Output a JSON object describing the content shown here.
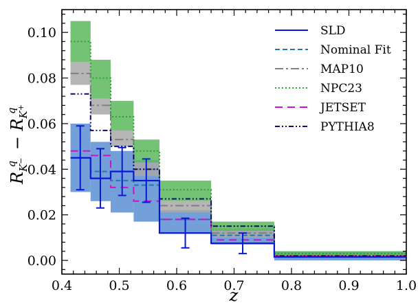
{
  "chart_data": {
    "type": "line",
    "xlabel": "z",
    "ylabel_parts": {
      "main": "R",
      "sub1": "K",
      "sub1_sup": "−",
      "sup": "q",
      "minus": " − ",
      "main2": "R",
      "sub2": "K",
      "sub2_sup": "+",
      "sup2": "q"
    },
    "xlim": [
      0.4,
      1.0
    ],
    "ylim": [
      -0.006,
      0.11
    ],
    "x_ticks": [
      0.4,
      0.5,
      0.6,
      0.7,
      0.8,
      0.9,
      1.0
    ],
    "x_tick_labels": [
      "0.4",
      "0.5",
      "0.6",
      "0.7",
      "0.8",
      "0.9",
      "1.0"
    ],
    "y_ticks": [
      0.0,
      0.02,
      0.04,
      0.06,
      0.08,
      0.1
    ],
    "y_tick_labels": [
      "0.00",
      "0.02",
      "0.04",
      "0.06",
      "0.08",
      "0.10"
    ],
    "bin_edges": [
      0.415,
      0.45,
      0.485,
      0.525,
      0.57,
      0.66,
      0.77,
      1.0
    ],
    "bin_centers": [
      0.432,
      0.467,
      0.505,
      0.547,
      0.615,
      0.715,
      0.885
    ],
    "series": [
      {
        "name": "SLD",
        "style": "solid",
        "color": "#0a18d6",
        "values": [
          0.045,
          0.036,
          0.039,
          0.035,
          0.012,
          0.0075,
          0.0015
        ],
        "errors": [
          0.014,
          0.013,
          0.0105,
          0.0095,
          0.0065,
          0.0045,
          null
        ]
      },
      {
        "name": "Nominal Fit",
        "style": "dashed",
        "color": "#1f77b4",
        "values": [
          0.045,
          0.039,
          0.035,
          0.033,
          0.018,
          0.011,
          0.002
        ],
        "band": [
          [
            0.03,
            0.06
          ],
          [
            0.026,
            0.052
          ],
          [
            0.021,
            0.048
          ],
          [
            0.017,
            0.044
          ],
          [
            0.012,
            0.022
          ],
          [
            0.007,
            0.014
          ],
          [
            0.0,
            0.004
          ]
        ],
        "band_color": "#5b8fd1"
      },
      {
        "name": "MAP10",
        "style": "dashdot",
        "color": "#808080",
        "values": [
          0.082,
          0.068,
          0.053,
          0.04,
          0.024,
          0.012,
          0.002
        ],
        "band": [
          [
            0.077,
            0.087
          ],
          [
            0.064,
            0.071
          ],
          [
            0.05,
            0.057
          ],
          [
            0.037,
            0.043
          ],
          [
            0.021,
            0.026
          ],
          [
            0.01,
            0.014
          ],
          [
            0.001,
            0.003
          ]
        ],
        "band_color": "#a8a8a8"
      },
      {
        "name": "NPC23",
        "style": "dotted",
        "color": "#2ca02c",
        "values": [
          0.096,
          0.08,
          0.063,
          0.048,
          0.031,
          0.015,
          0.003
        ],
        "band": [
          [
            0.087,
            0.105
          ],
          [
            0.071,
            0.088
          ],
          [
            0.057,
            0.07
          ],
          [
            0.043,
            0.053
          ],
          [
            0.026,
            0.035
          ],
          [
            0.013,
            0.017
          ],
          [
            0.002,
            0.004
          ]
        ],
        "band_color": "#5cb85c"
      },
      {
        "name": "JETSET",
        "style": "longdash",
        "color": "#cc11cc",
        "values": [
          0.048,
          0.046,
          0.032,
          0.026,
          0.018,
          0.009,
          0.002
        ]
      },
      {
        "name": "PYTHIA8",
        "style": "dashdotdot",
        "color": "#0b0b6e",
        "values": [
          0.073,
          0.057,
          0.05,
          0.04,
          0.027,
          0.015,
          0.002
        ]
      }
    ],
    "legend_placement": "top-right"
  }
}
